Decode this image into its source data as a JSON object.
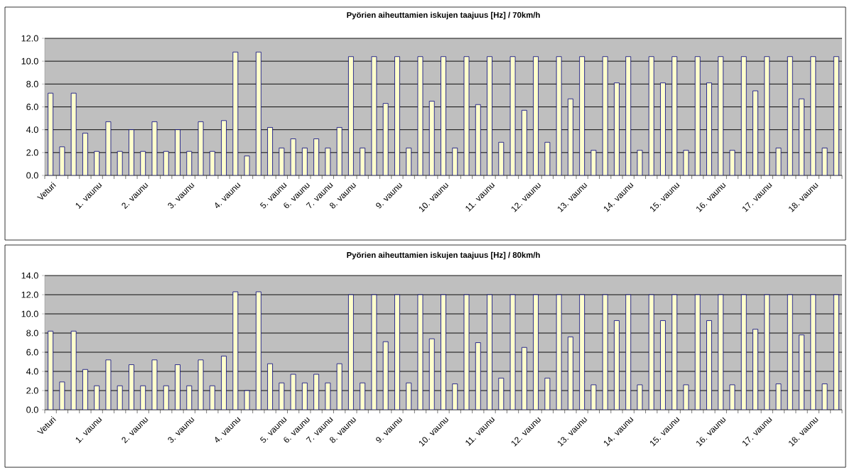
{
  "chart_data": [
    {
      "type": "bar",
      "title": "Pyörien aiheuttamien iskujen taajuus [Hz] / 70km/h",
      "categories": [
        "Veturi",
        null,
        null,
        null,
        "1. vaunu",
        null,
        null,
        null,
        "2. vaunu",
        null,
        null,
        null,
        "3. vaunu",
        null,
        null,
        null,
        "4. vaunu",
        null,
        null,
        null,
        "5. vaunu",
        null,
        "6. vaunu",
        null,
        "7. vaunu",
        null,
        "8. vaunu",
        null,
        null,
        null,
        "9. vaunu",
        null,
        null,
        null,
        "10. vaunu",
        null,
        null,
        null,
        "11. vaunu",
        null,
        null,
        null,
        "12. vaunu",
        null,
        null,
        null,
        "13. vaunu",
        null,
        null,
        null,
        "14. vaunu",
        null,
        null,
        null,
        "15. vaunu",
        null,
        null,
        null,
        "16. vaunu",
        null,
        null,
        null,
        "17. vaunu",
        null,
        null,
        null,
        "18. vaunu",
        null,
        null
      ],
      "values": [
        7.2,
        2.5,
        7.2,
        3.7,
        2.1,
        4.7,
        2.1,
        4.0,
        2.1,
        4.7,
        2.1,
        4.0,
        2.1,
        4.7,
        2.1,
        4.8,
        10.8,
        1.7,
        10.8,
        4.2,
        2.4,
        3.2,
        2.4,
        3.2,
        2.4,
        4.2,
        10.4,
        2.4,
        10.4,
        6.3,
        10.4,
        2.4,
        10.4,
        6.5,
        10.4,
        2.4,
        10.4,
        6.2,
        10.4,
        2.9,
        10.4,
        5.7,
        10.4,
        2.9,
        10.4,
        6.7,
        10.4,
        2.2,
        10.4,
        8.1,
        10.4,
        2.2,
        10.4,
        8.1,
        10.4,
        2.2,
        10.4,
        8.1,
        10.4,
        2.2,
        10.4,
        7.4,
        10.4,
        2.4,
        10.4,
        6.7,
        10.4,
        2.4,
        10.4
      ],
      "color": "#ffffcc",
      "ylim": [
        0,
        12
      ],
      "yticks": [
        {
          "value": 0,
          "label": "0.0"
        },
        {
          "value": 2,
          "label": "2.0"
        },
        {
          "value": 4,
          "label": "4.0"
        },
        {
          "value": 6,
          "label": "6.0"
        },
        {
          "value": 8,
          "label": "8.0"
        },
        {
          "value": 10,
          "label": "10.0"
        },
        {
          "value": 12,
          "label": "12.0"
        }
      ],
      "grid": "y"
    },
    {
      "type": "bar",
      "title": "Pyörien aiheuttamien iskujen taajuus [Hz] / 80km/h",
      "categories": [
        "Veturi",
        null,
        null,
        null,
        "1. vaunu",
        null,
        null,
        null,
        "2. vaunu",
        null,
        null,
        null,
        "3. vaunu",
        null,
        null,
        null,
        "4. vaunu",
        null,
        null,
        null,
        "5. vaunu",
        null,
        "6. vaunu",
        null,
        "7. vaunu",
        null,
        "8. vaunu",
        null,
        null,
        null,
        "9. vaunu",
        null,
        null,
        null,
        "10. vaunu",
        null,
        null,
        null,
        "11. vaunu",
        null,
        null,
        null,
        "12. vaunu",
        null,
        null,
        null,
        "13. vaunu",
        null,
        null,
        null,
        "14. vaunu",
        null,
        null,
        null,
        "15. vaunu",
        null,
        null,
        null,
        "16. vaunu",
        null,
        null,
        null,
        "17. vaunu",
        null,
        null,
        null,
        "18. vaunu",
        null,
        null
      ],
      "values": [
        8.2,
        2.9,
        8.2,
        4.2,
        2.5,
        5.2,
        2.5,
        4.7,
        2.5,
        5.2,
        2.5,
        4.7,
        2.5,
        5.2,
        2.5,
        5.6,
        12.3,
        2.0,
        12.3,
        4.8,
        2.8,
        3.7,
        2.8,
        3.7,
        2.8,
        4.8,
        12.0,
        2.8,
        12.0,
        7.1,
        12.0,
        2.8,
        12.0,
        7.4,
        12.0,
        2.7,
        12.0,
        7.0,
        12.0,
        3.3,
        12.0,
        6.5,
        12.0,
        3.3,
        12.0,
        7.6,
        12.0,
        2.6,
        12.0,
        9.3,
        12.0,
        2.6,
        12.0,
        9.3,
        12.0,
        2.6,
        12.0,
        9.3,
        12.0,
        2.6,
        12.0,
        8.4,
        12.0,
        2.7,
        12.0,
        7.8,
        12.0,
        2.7,
        12.0
      ],
      "color": "#ffffcc",
      "ylim": [
        0,
        14
      ],
      "yticks": [
        {
          "value": 0,
          "label": "0.0"
        },
        {
          "value": 2,
          "label": "2.0"
        },
        {
          "value": 4,
          "label": "4.0"
        },
        {
          "value": 6,
          "label": "6.0"
        },
        {
          "value": 8,
          "label": "8.0"
        },
        {
          "value": 10,
          "label": "10.0"
        },
        {
          "value": 12,
          "label": "12.0"
        },
        {
          "value": 14,
          "label": "14.0"
        }
      ],
      "grid": "y"
    }
  ]
}
